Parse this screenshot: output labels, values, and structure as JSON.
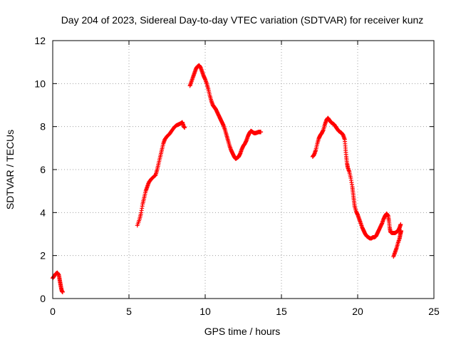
{
  "chart_data": {
    "type": "scatter",
    "title": "Day 204 of 2023, Sidereal Day-to-day VTEC variation (SDTVAR) for receiver kunz",
    "xlabel": "GPS time / hours",
    "ylabel": "SDTVAR / TECUs",
    "xlim": [
      0,
      25
    ],
    "ylim": [
      0,
      12
    ],
    "x_ticks": [
      0,
      5,
      10,
      15,
      20,
      25
    ],
    "y_ticks": [
      0,
      2,
      4,
      6,
      8,
      10,
      12
    ],
    "grid": true,
    "marker": "plus",
    "color": "#ff0000",
    "series": [
      {
        "name": "SDTVAR",
        "segments": [
          [
            [
              0.0,
              0.95
            ],
            [
              0.1,
              1.05
            ],
            [
              0.2,
              1.15
            ],
            [
              0.3,
              1.2
            ],
            [
              0.4,
              1.1
            ],
            [
              0.45,
              0.9
            ],
            [
              0.5,
              0.7
            ],
            [
              0.55,
              0.5
            ],
            [
              0.6,
              0.35
            ],
            [
              0.65,
              0.3
            ]
          ],
          [
            [
              5.55,
              3.4
            ],
            [
              5.7,
              3.7
            ],
            [
              5.8,
              4.0
            ],
            [
              5.9,
              4.4
            ],
            [
              6.0,
              4.7
            ],
            [
              6.1,
              5.0
            ],
            [
              6.2,
              5.2
            ],
            [
              6.3,
              5.4
            ],
            [
              6.45,
              5.55
            ],
            [
              6.6,
              5.65
            ],
            [
              6.75,
              5.75
            ],
            [
              6.85,
              6.0
            ],
            [
              6.95,
              6.3
            ],
            [
              7.05,
              6.6
            ],
            [
              7.15,
              6.9
            ],
            [
              7.25,
              7.2
            ],
            [
              7.35,
              7.4
            ],
            [
              7.5,
              7.55
            ],
            [
              7.65,
              7.65
            ],
            [
              7.8,
              7.8
            ],
            [
              7.95,
              7.95
            ],
            [
              8.1,
              8.05
            ],
            [
              8.25,
              8.1
            ],
            [
              8.4,
              8.15
            ],
            [
              8.5,
              8.2
            ],
            [
              8.6,
              8.0
            ],
            [
              8.65,
              7.95
            ]
          ],
          [
            [
              9.0,
              9.9
            ],
            [
              9.1,
              10.1
            ],
            [
              9.2,
              10.3
            ],
            [
              9.3,
              10.5
            ],
            [
              9.4,
              10.7
            ],
            [
              9.5,
              10.8
            ],
            [
              9.6,
              10.85
            ],
            [
              9.7,
              10.75
            ],
            [
              9.8,
              10.55
            ],
            [
              9.9,
              10.35
            ],
            [
              10.0,
              10.2
            ],
            [
              10.1,
              10.0
            ],
            [
              10.2,
              9.75
            ],
            [
              10.3,
              9.45
            ],
            [
              10.4,
              9.2
            ],
            [
              10.5,
              9.0
            ],
            [
              10.6,
              8.9
            ],
            [
              10.7,
              8.8
            ],
            [
              10.8,
              8.65
            ],
            [
              10.9,
              8.5
            ],
            [
              11.0,
              8.35
            ],
            [
              11.1,
              8.2
            ],
            [
              11.2,
              8.05
            ],
            [
              11.3,
              7.85
            ],
            [
              11.4,
              7.6
            ],
            [
              11.5,
              7.35
            ],
            [
              11.6,
              7.1
            ],
            [
              11.7,
              6.9
            ],
            [
              11.8,
              6.75
            ],
            [
              11.9,
              6.6
            ],
            [
              12.0,
              6.5
            ],
            [
              12.1,
              6.55
            ],
            [
              12.2,
              6.6
            ],
            [
              12.3,
              6.75
            ],
            [
              12.4,
              6.95
            ],
            [
              12.5,
              7.1
            ],
            [
              12.6,
              7.2
            ],
            [
              12.7,
              7.35
            ],
            [
              12.8,
              7.55
            ],
            [
              12.9,
              7.7
            ],
            [
              13.0,
              7.8
            ],
            [
              13.1,
              7.75
            ],
            [
              13.2,
              7.7
            ],
            [
              13.3,
              7.7
            ],
            [
              13.4,
              7.72
            ],
            [
              13.5,
              7.75
            ],
            [
              13.6,
              7.75
            ],
            [
              13.65,
              7.75
            ]
          ],
          [
            [
              17.05,
              6.6
            ],
            [
              17.15,
              6.7
            ],
            [
              17.25,
              6.9
            ],
            [
              17.35,
              7.2
            ],
            [
              17.45,
              7.45
            ],
            [
              17.55,
              7.6
            ],
            [
              17.65,
              7.7
            ],
            [
              17.75,
              7.85
            ],
            [
              17.85,
              8.1
            ],
            [
              17.95,
              8.3
            ],
            [
              18.05,
              8.4
            ],
            [
              18.15,
              8.3
            ],
            [
              18.25,
              8.2
            ],
            [
              18.35,
              8.15
            ],
            [
              18.45,
              8.1
            ],
            [
              18.55,
              8.0
            ],
            [
              18.65,
              7.9
            ],
            [
              18.75,
              7.8
            ],
            [
              18.85,
              7.75
            ],
            [
              18.95,
              7.7
            ],
            [
              19.05,
              7.6
            ],
            [
              19.15,
              7.4
            ],
            [
              19.2,
              7.0
            ],
            [
              19.25,
              6.6
            ],
            [
              19.3,
              6.3
            ],
            [
              19.35,
              6.1
            ],
            [
              19.45,
              5.9
            ],
            [
              19.55,
              5.6
            ],
            [
              19.65,
              5.2
            ],
            [
              19.7,
              4.9
            ],
            [
              19.75,
              4.6
            ],
            [
              19.8,
              4.3
            ],
            [
              19.9,
              4.05
            ],
            [
              20.0,
              3.9
            ],
            [
              20.1,
              3.7
            ],
            [
              20.2,
              3.5
            ],
            [
              20.3,
              3.3
            ],
            [
              20.4,
              3.15
            ],
            [
              20.5,
              3.0
            ],
            [
              20.6,
              2.9
            ],
            [
              20.7,
              2.85
            ],
            [
              20.8,
              2.8
            ],
            [
              20.9,
              2.8
            ],
            [
              21.0,
              2.85
            ],
            [
              21.1,
              2.85
            ],
            [
              21.2,
              2.9
            ],
            [
              21.3,
              3.05
            ],
            [
              21.4,
              3.2
            ],
            [
              21.5,
              3.35
            ],
            [
              21.6,
              3.5
            ],
            [
              21.7,
              3.7
            ],
            [
              21.8,
              3.85
            ],
            [
              21.9,
              3.95
            ],
            [
              22.0,
              3.85
            ],
            [
              22.05,
              3.6
            ],
            [
              22.1,
              3.3
            ],
            [
              22.15,
              3.1
            ],
            [
              22.25,
              3.05
            ],
            [
              22.35,
              3.05
            ],
            [
              22.45,
              3.05
            ],
            [
              22.55,
              3.1
            ],
            [
              22.65,
              3.15
            ],
            [
              22.75,
              3.3
            ],
            [
              22.82,
              3.45
            ]
          ],
          [
            [
              22.35,
              1.95
            ],
            [
              22.45,
              2.15
            ],
            [
              22.55,
              2.35
            ],
            [
              22.65,
              2.6
            ],
            [
              22.75,
              2.8
            ],
            [
              22.8,
              3.0
            ],
            [
              22.85,
              3.15
            ]
          ]
        ]
      }
    ]
  }
}
